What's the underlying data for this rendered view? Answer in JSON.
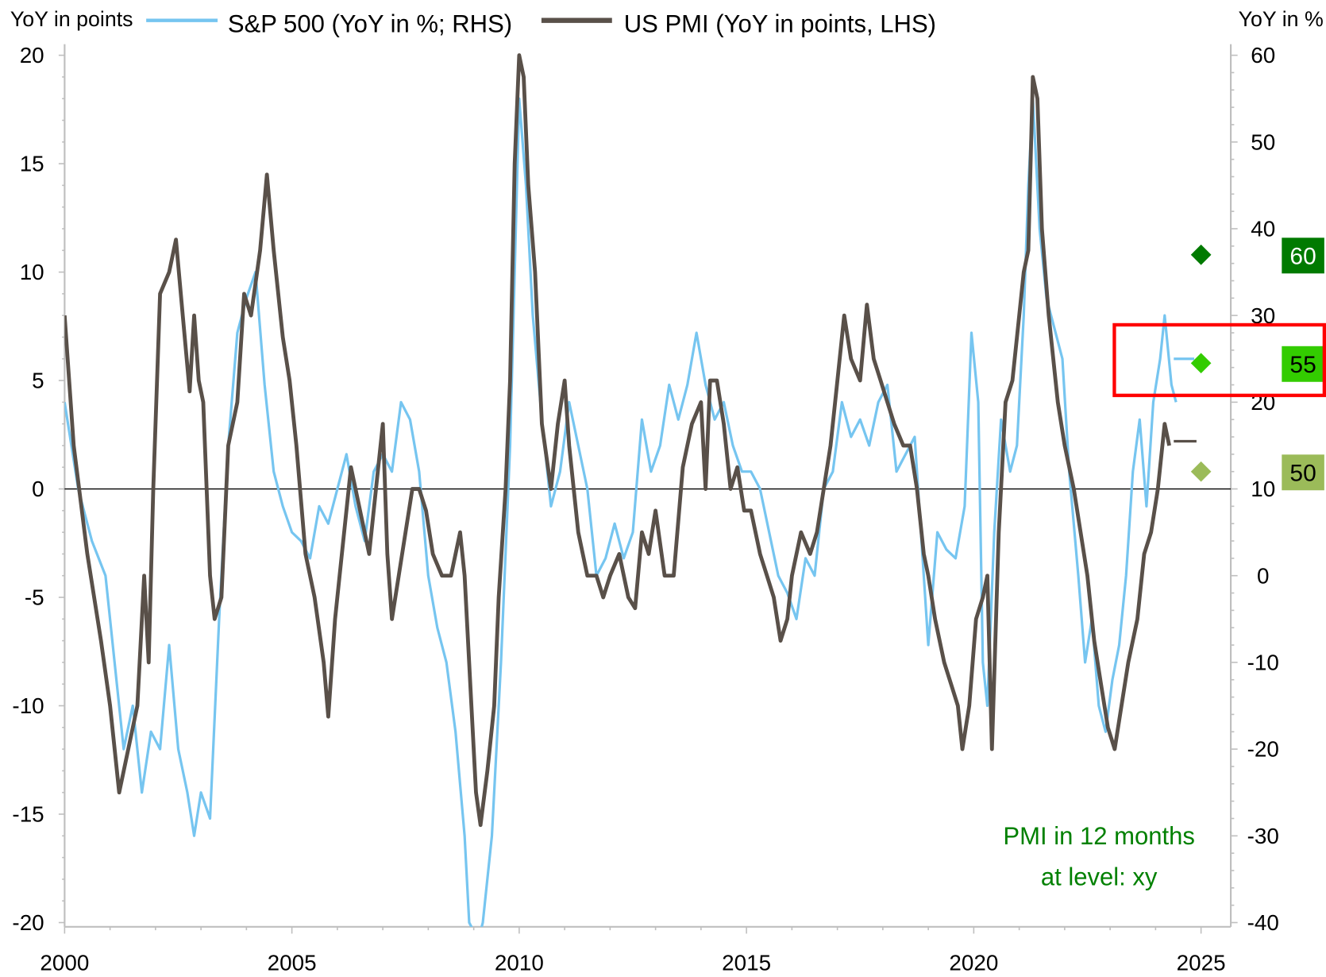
{
  "chart_data": {
    "type": "line",
    "title": "",
    "left_axis": {
      "label": "YoY in points",
      "ylim": [
        -20,
        20
      ],
      "ticks": [
        20,
        15,
        10,
        5,
        0,
        -5,
        -10,
        -15,
        -20
      ]
    },
    "right_axis": {
      "label": "YoY in %",
      "ylim": [
        -40,
        60
      ],
      "ticks": [
        60,
        50,
        40,
        30,
        20,
        10,
        0,
        -10,
        -20,
        -30,
        -40
      ]
    },
    "x_axis": {
      "xlim": [
        2000,
        2025.65
      ],
      "ticks": [
        2000,
        2005,
        2010,
        2015,
        2020,
        2025
      ]
    },
    "grid": false,
    "legend": {
      "placement": "top",
      "entries": [
        "S&P 500 (YoY in %; RHS)",
        "US PMI (YoY in points, LHS)"
      ]
    },
    "series": [
      {
        "name": "S&P 500 (YoY in %; RHS)",
        "axis": "right",
        "color": "#76c5f0",
        "x": [
          2000.0,
          2000.3,
          2000.6,
          2000.9,
          2001.1,
          2001.3,
          2001.5,
          2001.7,
          2001.9,
          2002.1,
          2002.3,
          2002.5,
          2002.7,
          2002.85,
          2003.0,
          2003.2,
          2003.4,
          2003.6,
          2003.8,
          2004.0,
          2004.2,
          2004.4,
          2004.6,
          2004.8,
          2005.0,
          2005.2,
          2005.4,
          2005.6,
          2005.8,
          2006.0,
          2006.2,
          2006.4,
          2006.6,
          2006.8,
          2007.0,
          2007.2,
          2007.4,
          2007.6,
          2007.8,
          2008.0,
          2008.2,
          2008.4,
          2008.6,
          2008.8,
          2008.9,
          2009.1,
          2009.2,
          2009.4,
          2009.6,
          2009.8,
          2009.9,
          2010.0,
          2010.15,
          2010.3,
          2010.5,
          2010.7,
          2010.9,
          2011.1,
          2011.3,
          2011.5,
          2011.7,
          2011.9,
          2012.1,
          2012.3,
          2012.5,
          2012.7,
          2012.9,
          2013.1,
          2013.3,
          2013.5,
          2013.7,
          2013.9,
          2014.1,
          2014.3,
          2014.5,
          2014.7,
          2014.9,
          2015.1,
          2015.3,
          2015.5,
          2015.7,
          2015.9,
          2016.1,
          2016.3,
          2016.5,
          2016.7,
          2016.9,
          2017.1,
          2017.3,
          2017.5,
          2017.7,
          2017.9,
          2018.1,
          2018.3,
          2018.5,
          2018.7,
          2018.9,
          2019.0,
          2019.2,
          2019.4,
          2019.6,
          2019.8,
          2019.95,
          2020.1,
          2020.2,
          2020.3,
          2020.45,
          2020.6,
          2020.8,
          2020.95,
          2021.1,
          2021.2,
          2021.3,
          2021.45,
          2021.6,
          2021.8,
          2021.95,
          2022.1,
          2022.3,
          2022.45,
          2022.6,
          2022.75,
          2022.9,
          2023.05,
          2023.2,
          2023.35,
          2023.5,
          2023.65,
          2023.8,
          2023.95,
          2024.1,
          2024.2,
          2024.35,
          2024.45
        ],
        "values": [
          20,
          10,
          4,
          0,
          -10,
          -20,
          -15,
          -25,
          -18,
          -20,
          -8,
          -20,
          -25,
          -30,
          -25,
          -28,
          -5,
          15,
          28,
          32,
          35,
          22,
          12,
          8,
          5,
          4,
          2,
          8,
          6,
          10,
          14,
          8,
          4,
          12,
          14,
          12,
          20,
          18,
          12,
          0,
          -6,
          -10,
          -18,
          -30,
          -40,
          -42,
          -40,
          -30,
          -10,
          15,
          35,
          55,
          45,
          30,
          18,
          8,
          12,
          20,
          15,
          10,
          0,
          2,
          6,
          2,
          5,
          18,
          12,
          15,
          22,
          18,
          22,
          28,
          22,
          18,
          20,
          15,
          12,
          12,
          10,
          5,
          0,
          -2,
          -5,
          2,
          0,
          10,
          12,
          20,
          16,
          18,
          15,
          20,
          22,
          12,
          14,
          16,
          0,
          -8,
          5,
          3,
          2,
          8,
          28,
          20,
          -10,
          -15,
          5,
          18,
          12,
          15,
          30,
          45,
          55,
          40,
          32,
          28,
          25,
          12,
          0,
          -10,
          -5,
          -15,
          -18,
          -12,
          -8,
          0,
          12,
          18,
          8,
          20,
          25,
          30,
          22,
          20
        ],
        "marker_line": {
          "x": [
            2024.4,
            2024.85
          ],
          "value": 25
        }
      },
      {
        "name": "US PMI (YoY in points, LHS)",
        "axis": "left",
        "color": "#595049",
        "x": [
          2000.0,
          2000.2,
          2000.5,
          2000.8,
          2001.0,
          2001.2,
          2001.4,
          2001.6,
          2001.75,
          2001.85,
          2001.95,
          2002.1,
          2002.3,
          2002.45,
          2002.6,
          2002.75,
          2002.85,
          2002.95,
          2003.05,
          2003.2,
          2003.3,
          2003.45,
          2003.6,
          2003.8,
          2003.95,
          2004.1,
          2004.3,
          2004.45,
          2004.6,
          2004.8,
          2004.95,
          2005.1,
          2005.3,
          2005.5,
          2005.7,
          2005.8,
          2005.95,
          2006.1,
          2006.3,
          2006.5,
          2006.7,
          2006.9,
          2007.0,
          2007.1,
          2007.2,
          2007.35,
          2007.5,
          2007.65,
          2007.8,
          2007.95,
          2008.1,
          2008.3,
          2008.5,
          2008.7,
          2008.8,
          2008.95,
          2009.05,
          2009.15,
          2009.3,
          2009.45,
          2009.55,
          2009.7,
          2009.8,
          2009.9,
          2010.0,
          2010.1,
          2010.2,
          2010.35,
          2010.5,
          2010.7,
          2010.85,
          2011.0,
          2011.1,
          2011.3,
          2011.5,
          2011.7,
          2011.85,
          2012.0,
          2012.2,
          2012.4,
          2012.55,
          2012.7,
          2012.85,
          2013.0,
          2013.2,
          2013.4,
          2013.6,
          2013.8,
          2014.0,
          2014.1,
          2014.2,
          2014.35,
          2014.5,
          2014.65,
          2014.8,
          2014.95,
          2015.1,
          2015.3,
          2015.45,
          2015.6,
          2015.75,
          2015.9,
          2016.0,
          2016.2,
          2016.4,
          2016.55,
          2016.7,
          2016.85,
          2017.0,
          2017.15,
          2017.3,
          2017.5,
          2017.65,
          2017.8,
          2017.95,
          2018.1,
          2018.25,
          2018.45,
          2018.6,
          2018.75,
          2018.9,
          2019.0,
          2019.15,
          2019.35,
          2019.5,
          2019.65,
          2019.75,
          2019.9,
          2020.05,
          2020.2,
          2020.3,
          2020.4,
          2020.55,
          2020.7,
          2020.85,
          2021.0,
          2021.1,
          2021.2,
          2021.3,
          2021.4,
          2021.5,
          2021.65,
          2021.85,
          2022.0,
          2022.2,
          2022.35,
          2022.5,
          2022.65,
          2022.8,
          2022.95,
          2023.1,
          2023.25,
          2023.4,
          2023.6,
          2023.75,
          2023.9,
          2024.05,
          2024.2,
          2024.3
        ],
        "values": [
          8,
          2,
          -3,
          -7,
          -10,
          -14,
          -12,
          -10,
          -4,
          -8,
          0,
          9,
          10,
          11.5,
          8,
          4.5,
          8,
          5,
          4,
          -4,
          -6,
          -5,
          2,
          4,
          9,
          8,
          11,
          14.5,
          11,
          7,
          5,
          2,
          -3,
          -5,
          -8,
          -10.5,
          -6,
          -3,
          1,
          -1,
          -3,
          1,
          3,
          -3,
          -6,
          -4,
          -2,
          0,
          0,
          -1,
          -3,
          -4,
          -4,
          -2,
          -4,
          -10,
          -14,
          -15.5,
          -13,
          -10,
          -5,
          0,
          5,
          15,
          20,
          19,
          14,
          10,
          3,
          0,
          3,
          5,
          2,
          -2,
          -4,
          -4,
          -5,
          -4,
          -3,
          -5,
          -5.5,
          -2,
          -3,
          -1,
          -4,
          -4,
          1,
          3,
          4,
          0,
          5,
          5,
          3,
          0,
          1,
          -1,
          -1,
          -3,
          -4,
          -5,
          -7,
          -6,
          -4,
          -2,
          -3,
          -2,
          0,
          2,
          5,
          8,
          6,
          5,
          8.5,
          6,
          5,
          4,
          3,
          2,
          2,
          0,
          -3,
          -4,
          -6,
          -8,
          -9,
          -10,
          -12,
          -10,
          -6,
          -5,
          -4,
          -12,
          -2,
          4,
          5,
          8,
          10,
          11,
          19,
          18,
          12,
          8,
          4,
          2,
          0,
          -2,
          -4,
          -7,
          -9,
          -11,
          -12,
          -10,
          -8,
          -6,
          -3,
          -2,
          0,
          3,
          2
        ],
        "marker_line": {
          "x": [
            2024.4,
            2024.9
          ],
          "value": 2.2
        }
      }
    ],
    "annotations": {
      "pmi_levels": [
        {
          "label": "60",
          "value_lhs": 10.8,
          "color": "#007a00",
          "text_color": "#ffffff"
        },
        {
          "label": "55",
          "value_lhs": 5.8,
          "color": "#33cc00",
          "text_color": "#000000"
        },
        {
          "label": "50",
          "value_lhs": 0.8,
          "color": "#9bbb59",
          "text_color": "#000000"
        }
      ],
      "note_line1": "PMI in 12 months",
      "note_line2": "at level: xy",
      "note_color": "#008000",
      "highlight_color": "#ff0000",
      "highlight_level": "55"
    }
  }
}
